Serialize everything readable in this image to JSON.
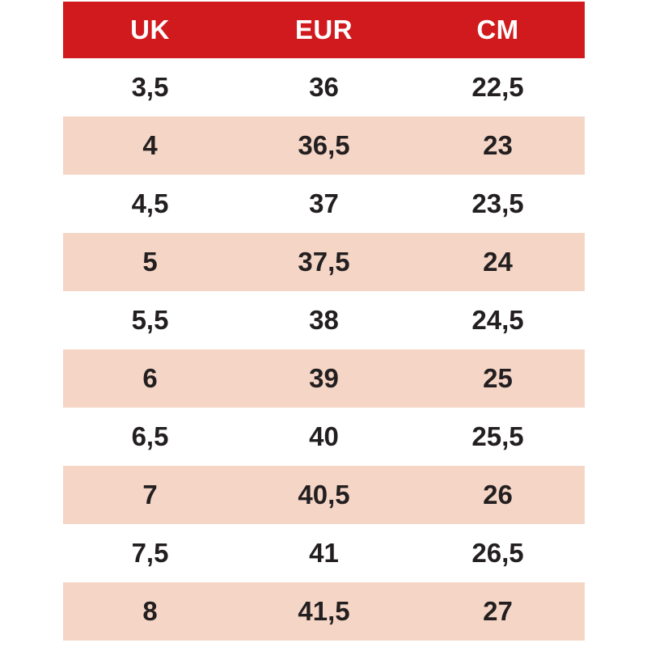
{
  "chart_data": {
    "type": "table",
    "title": "",
    "headers": [
      "UK",
      "EUR",
      "CM"
    ],
    "rows": [
      [
        "3,5",
        "36",
        "22,5"
      ],
      [
        "4",
        "36,5",
        "23"
      ],
      [
        "4,5",
        "37",
        "23,5"
      ],
      [
        "5",
        "37,5",
        "24"
      ],
      [
        "5,5",
        "38",
        "24,5"
      ],
      [
        "6",
        "39",
        "25"
      ],
      [
        "6,5",
        "40",
        "25,5"
      ],
      [
        "7",
        "40,5",
        "26"
      ],
      [
        "7,5",
        "41",
        "26,5"
      ],
      [
        "8",
        "41,5",
        "27"
      ]
    ],
    "layout": {
      "alternating_rows": true,
      "columns_equal_width": true
    },
    "colors": {
      "page_bg": "#ffffff",
      "header_bg": "#d11a1d",
      "header_text": "#ffffff",
      "row_bg": "#ffffff",
      "row_alt_bg": "#f5d6c6",
      "text": "#231f20"
    }
  }
}
